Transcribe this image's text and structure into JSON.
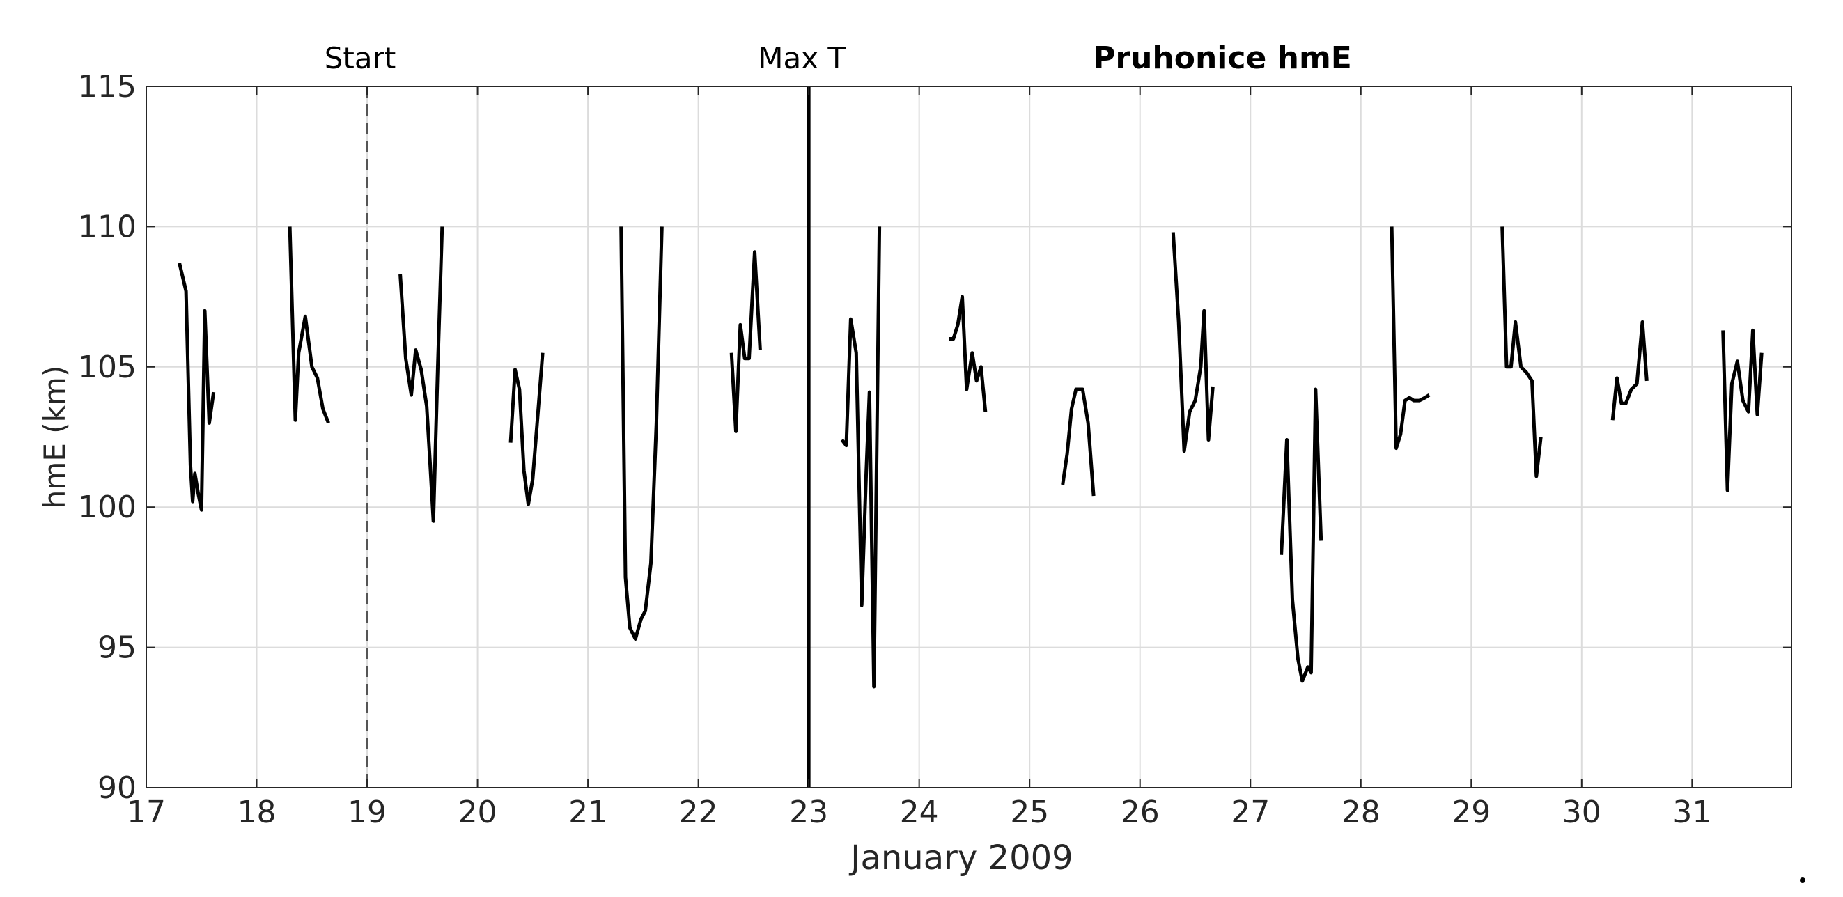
{
  "chart_data": {
    "type": "line",
    "title": "Pruhonice hmE",
    "xlabel": "January 2009",
    "ylabel": "hmE (km)",
    "xlim": [
      17,
      31.9
    ],
    "ylim": [
      90,
      115
    ],
    "xticks": [
      17,
      18,
      19,
      20,
      21,
      22,
      23,
      24,
      25,
      26,
      27,
      28,
      29,
      30,
      31
    ],
    "yticks": [
      90,
      95,
      100,
      105,
      110,
      115
    ],
    "grid": true,
    "annotations": [
      {
        "label": "Start",
        "x": 19,
        "style": "dashed"
      },
      {
        "label": "Max T",
        "x": 23,
        "style": "solid"
      }
    ],
    "series": [
      {
        "segments": [
          [
            [
              17.3,
              108.7
            ],
            [
              17.36,
              107.7
            ],
            [
              17.4,
              101.5
            ],
            [
              17.42,
              100.2
            ],
            [
              17.44,
              101.2
            ],
            [
              17.47,
              100.5
            ],
            [
              17.5,
              99.9
            ],
            [
              17.53,
              107.0
            ],
            [
              17.57,
              103.0
            ],
            [
              17.61,
              104.1
            ]
          ],
          [
            [
              18.3,
              110.0
            ],
            [
              18.35,
              103.1
            ],
            [
              18.38,
              105.5
            ],
            [
              18.44,
              106.8
            ],
            [
              18.5,
              105.0
            ],
            [
              18.55,
              104.6
            ],
            [
              18.6,
              103.5
            ],
            [
              18.65,
              103.0
            ]
          ],
          [
            [
              19.3,
              108.3
            ],
            [
              19.35,
              105.3
            ],
            [
              19.4,
              104.0
            ],
            [
              19.44,
              105.6
            ],
            [
              19.49,
              104.9
            ],
            [
              19.54,
              103.6
            ],
            [
              19.57,
              101.6
            ],
            [
              19.6,
              99.5
            ],
            [
              19.64,
              105.0
            ],
            [
              19.68,
              110.0
            ]
          ],
          [
            [
              20.3,
              102.3
            ],
            [
              20.34,
              104.9
            ],
            [
              20.38,
              104.2
            ],
            [
              20.42,
              101.3
            ],
            [
              20.46,
              100.1
            ],
            [
              20.5,
              101.0
            ],
            [
              20.55,
              103.5
            ],
            [
              20.59,
              105.5
            ]
          ],
          [
            [
              21.3,
              110.0
            ],
            [
              21.34,
              97.5
            ],
            [
              21.38,
              95.7
            ],
            [
              21.43,
              95.3
            ],
            [
              21.48,
              96.0
            ],
            [
              21.52,
              96.3
            ],
            [
              21.57,
              98.0
            ],
            [
              21.62,
              103.0
            ],
            [
              21.67,
              110.0
            ]
          ],
          [
            [
              22.3,
              105.5
            ],
            [
              22.34,
              102.7
            ],
            [
              22.38,
              106.5
            ],
            [
              22.42,
              105.3
            ],
            [
              22.46,
              105.3
            ],
            [
              22.51,
              109.1
            ],
            [
              22.56,
              105.6
            ]
          ],
          [
            [
              23.3,
              102.4
            ],
            [
              23.34,
              102.2
            ],
            [
              23.38,
              106.7
            ],
            [
              23.43,
              105.5
            ],
            [
              23.48,
              96.5
            ],
            [
              23.52,
              101.2
            ],
            [
              23.55,
              104.1
            ],
            [
              23.59,
              93.6
            ],
            [
              23.64,
              110.0
            ]
          ],
          [
            [
              24.27,
              106.0
            ],
            [
              24.31,
              106.0
            ],
            [
              24.35,
              106.5
            ],
            [
              24.39,
              107.5
            ],
            [
              24.43,
              104.2
            ],
            [
              24.48,
              105.5
            ],
            [
              24.52,
              104.5
            ],
            [
              24.56,
              105.0
            ],
            [
              24.6,
              103.4
            ]
          ],
          [
            [
              25.3,
              100.8
            ],
            [
              25.34,
              101.9
            ],
            [
              25.38,
              103.5
            ],
            [
              25.42,
              104.2
            ],
            [
              25.48,
              104.2
            ],
            [
              25.53,
              103.0
            ],
            [
              25.58,
              100.4
            ]
          ],
          [
            [
              26.3,
              109.8
            ],
            [
              26.35,
              106.6
            ],
            [
              26.4,
              102.0
            ],
            [
              26.45,
              103.4
            ],
            [
              26.5,
              103.8
            ],
            [
              26.55,
              105.0
            ],
            [
              26.58,
              107.0
            ],
            [
              26.62,
              102.4
            ],
            [
              26.66,
              104.3
            ]
          ],
          [
            [
              27.28,
              98.3
            ],
            [
              27.33,
              102.4
            ],
            [
              27.38,
              96.7
            ],
            [
              27.43,
              94.6
            ],
            [
              27.47,
              93.8
            ],
            [
              27.52,
              94.3
            ],
            [
              27.55,
              94.1
            ],
            [
              27.59,
              104.2
            ],
            [
              27.64,
              98.8
            ]
          ],
          [
            [
              28.28,
              110.0
            ],
            [
              28.32,
              102.1
            ],
            [
              28.36,
              102.6
            ],
            [
              28.4,
              103.8
            ],
            [
              28.44,
              103.9
            ],
            [
              28.48,
              103.8
            ],
            [
              28.53,
              103.8
            ],
            [
              28.58,
              103.9
            ],
            [
              28.62,
              104.0
            ]
          ],
          [
            [
              29.28,
              110.0
            ],
            [
              29.32,
              105.0
            ],
            [
              29.36,
              105.0
            ],
            [
              29.4,
              106.6
            ],
            [
              29.45,
              105.0
            ],
            [
              29.5,
              104.8
            ],
            [
              29.55,
              104.5
            ],
            [
              29.59,
              101.1
            ],
            [
              29.63,
              102.5
            ]
          ],
          [
            [
              30.28,
              103.1
            ],
            [
              30.32,
              104.6
            ],
            [
              30.36,
              103.7
            ],
            [
              30.4,
              103.7
            ],
            [
              30.45,
              104.2
            ],
            [
              30.5,
              104.4
            ],
            [
              30.55,
              106.6
            ],
            [
              30.59,
              104.5
            ]
          ],
          [
            [
              31.28,
              106.3
            ],
            [
              31.32,
              100.6
            ],
            [
              31.36,
              104.4
            ],
            [
              31.41,
              105.2
            ],
            [
              31.46,
              103.8
            ],
            [
              31.51,
              103.4
            ],
            [
              31.55,
              106.3
            ],
            [
              31.59,
              103.3
            ],
            [
              31.63,
              105.5
            ]
          ]
        ]
      }
    ]
  }
}
